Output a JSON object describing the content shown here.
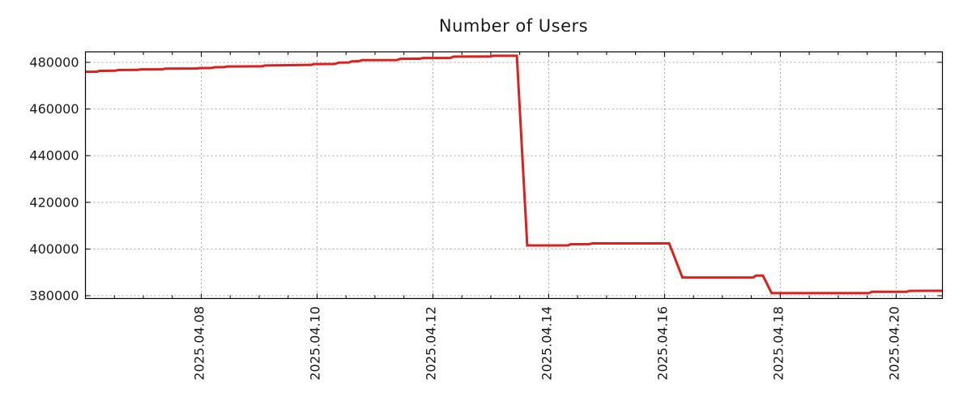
{
  "title": "Number of Users",
  "chart_data": {
    "type": "line",
    "title": "Number of Users",
    "xlabel": "",
    "ylabel": "",
    "line_color": "#d9221f",
    "grid_color": "#a6a6a6",
    "axis_color": "#000000",
    "grid_style": "dotted",
    "legend": "none",
    "y_ticks": [
      380000,
      400000,
      420000,
      440000,
      460000,
      480000
    ],
    "y_tick_labels": [
      "380000",
      "400000",
      "420000",
      "440000",
      "460000",
      "480000"
    ],
    "ylim": [
      378800,
      484500
    ],
    "x_unit": "days, 0 = 2025-04-06 00:00",
    "xlim_days": [
      0,
      14.8
    ],
    "x_major_ticks_days": [
      2,
      4,
      6,
      8,
      10,
      12,
      14
    ],
    "x_tick_labels": [
      "2025.04.08",
      "2025.04.10",
      "2025.04.12",
      "2025.04.14",
      "2025.04.16",
      "2025.04.18",
      "2025.04.20"
    ],
    "x_minor_tick_interval_days": 0.5,
    "points": [
      [
        0.0,
        475950
      ],
      [
        0.2,
        476000
      ],
      [
        0.24,
        476350
      ],
      [
        0.52,
        476400
      ],
      [
        0.56,
        476700
      ],
      [
        0.9,
        476750
      ],
      [
        0.95,
        477000
      ],
      [
        1.33,
        477050
      ],
      [
        1.38,
        477300
      ],
      [
        1.93,
        477400
      ],
      [
        1.97,
        477550
      ],
      [
        2.18,
        477600
      ],
      [
        2.23,
        477900
      ],
      [
        2.4,
        477950
      ],
      [
        2.44,
        478200
      ],
      [
        3.05,
        478300
      ],
      [
        3.1,
        478650
      ],
      [
        3.9,
        478900
      ],
      [
        3.95,
        479250
      ],
      [
        4.3,
        479300
      ],
      [
        4.38,
        479900
      ],
      [
        4.55,
        479950
      ],
      [
        4.6,
        480450
      ],
      [
        4.72,
        480500
      ],
      [
        4.78,
        480950
      ],
      [
        5.38,
        481000
      ],
      [
        5.44,
        481500
      ],
      [
        5.78,
        481550
      ],
      [
        5.83,
        481850
      ],
      [
        6.3,
        481900
      ],
      [
        6.36,
        482450
      ],
      [
        6.98,
        482500
      ],
      [
        7.04,
        482800
      ],
      [
        7.45,
        482800
      ],
      [
        7.63,
        401550
      ],
      [
        8.33,
        401550
      ],
      [
        8.38,
        402050
      ],
      [
        8.7,
        402100
      ],
      [
        8.76,
        402400
      ],
      [
        10.08,
        402400
      ],
      [
        10.31,
        387800
      ],
      [
        11.53,
        387800
      ],
      [
        11.58,
        388600
      ],
      [
        11.7,
        388600
      ],
      [
        11.85,
        381100
      ],
      [
        13.53,
        381100
      ],
      [
        13.58,
        381650
      ],
      [
        14.18,
        381650
      ],
      [
        14.23,
        382050
      ],
      [
        14.8,
        382100
      ]
    ]
  }
}
